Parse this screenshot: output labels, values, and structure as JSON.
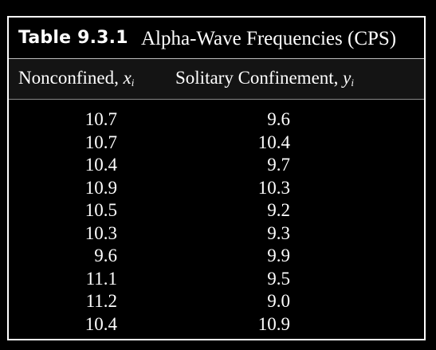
{
  "table": {
    "label": "Table 9.3.1",
    "caption": "Alpha-Wave Frequencies (CPS)",
    "columns": [
      {
        "name": "Nonconfined,",
        "variable": "x",
        "subscript": "i"
      },
      {
        "name": "Solitary Confinement,",
        "variable": "y",
        "subscript": "i"
      }
    ],
    "rows": [
      {
        "x": "10.7",
        "y": "9.6"
      },
      {
        "x": "10.7",
        "y": "10.4"
      },
      {
        "x": "10.4",
        "y": "9.7"
      },
      {
        "x": "10.9",
        "y": "10.3"
      },
      {
        "x": "10.5",
        "y": "9.2"
      },
      {
        "x": "10.3",
        "y": "9.3"
      },
      {
        "x": "9.6",
        "y": "9.9"
      },
      {
        "x": "11.1",
        "y": "9.5"
      },
      {
        "x": "11.2",
        "y": "9.0"
      },
      {
        "x": "10.4",
        "y": "10.9"
      }
    ]
  }
}
